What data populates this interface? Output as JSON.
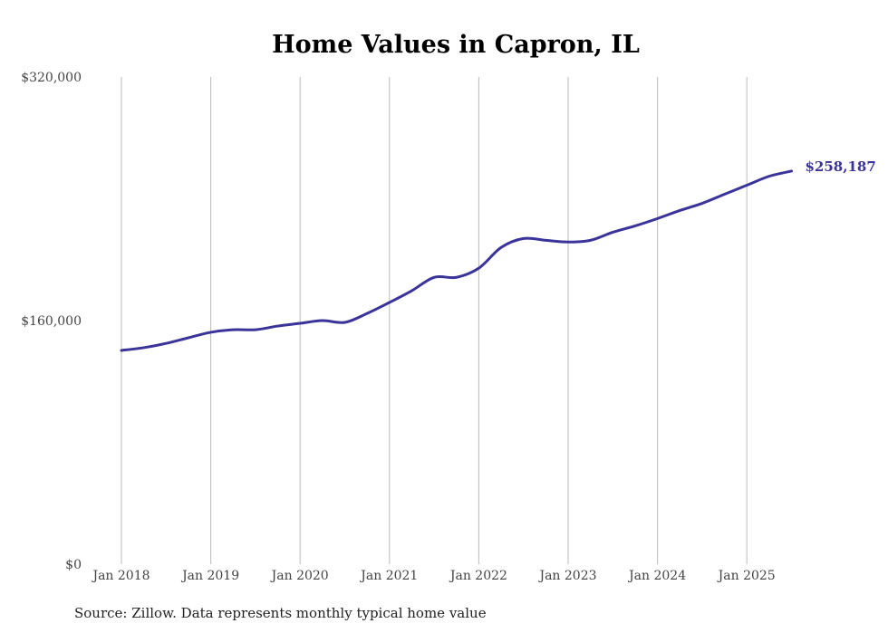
{
  "chart_data": {
    "type": "line",
    "title": "Home Values in Capron, IL",
    "xlabel": "",
    "ylabel": "",
    "ylim": [
      0,
      320000
    ],
    "y_ticks": [
      0,
      160000,
      320000
    ],
    "y_tick_labels": [
      "$0",
      "$160,000",
      "$320,000"
    ],
    "x_ticks": [
      2018,
      2019,
      2020,
      2021,
      2022,
      2023,
      2024,
      2025
    ],
    "x_tick_labels": [
      "Jan 2018",
      "Jan 2019",
      "Jan 2020",
      "Jan 2021",
      "Jan 2022",
      "Jan 2023",
      "Jan 2024",
      "Jan 2025"
    ],
    "xlim": [
      2018,
      2025.5
    ],
    "grid": "vertical",
    "series": [
      {
        "name": "Typical home value",
        "color": "#3a3399",
        "x": [
          2018,
          2018.25,
          2018.5,
          2018.75,
          2019,
          2019.25,
          2019.5,
          2019.75,
          2020,
          2020.25,
          2020.5,
          2020.75,
          2021,
          2021.25,
          2021.5,
          2021.75,
          2022,
          2022.25,
          2022.5,
          2022.75,
          2023,
          2023.25,
          2023.5,
          2023.75,
          2024,
          2024.25,
          2024.5,
          2024.75,
          2025,
          2025.25,
          2025.5
        ],
        "values": [
          140400,
          142200,
          145000,
          148700,
          152300,
          154000,
          154000,
          156400,
          158200,
          160000,
          158800,
          164700,
          171900,
          179600,
          188400,
          188400,
          194400,
          208000,
          213900,
          212700,
          211600,
          212700,
          218000,
          222200,
          227000,
          232300,
          237000,
          243000,
          248900,
          254800,
          258187
        ]
      }
    ],
    "end_label": "$258,187"
  },
  "footer": {
    "source": "Source: Zillow. Data represents monthly typical home value"
  }
}
